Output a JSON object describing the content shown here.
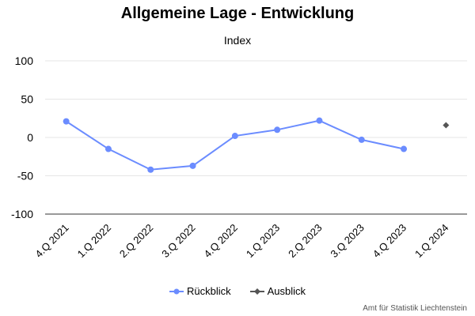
{
  "chart_data": {
    "type": "line",
    "title": "Allgemeine Lage - Entwicklung",
    "subtitle": "Index",
    "xlabel": "",
    "ylabel": "",
    "categories": [
      "4.Q 2021",
      "1.Q 2022",
      "2.Q 2022",
      "3.Q 2022",
      "4.Q 2022",
      "1.Q 2023",
      "2.Q 2023",
      "3.Q 2023",
      "4.Q 2023",
      "1.Q 2024"
    ],
    "ylim": [
      -100,
      100
    ],
    "yticks": [
      100,
      50,
      0,
      -50,
      -100
    ],
    "grid": true,
    "legend_position": "bottom",
    "series": [
      {
        "name": "Rückblick",
        "color": "#6b8cff",
        "marker": "circle",
        "values": [
          21,
          -15,
          -42,
          -37,
          2,
          10,
          22,
          -3,
          -15,
          null
        ]
      },
      {
        "name": "Ausblick",
        "color": "#555555",
        "marker": "diamond",
        "values": [
          null,
          null,
          null,
          null,
          null,
          null,
          null,
          null,
          null,
          16
        ]
      }
    ]
  },
  "credits": "Amt für Statistik Liechtenstein"
}
